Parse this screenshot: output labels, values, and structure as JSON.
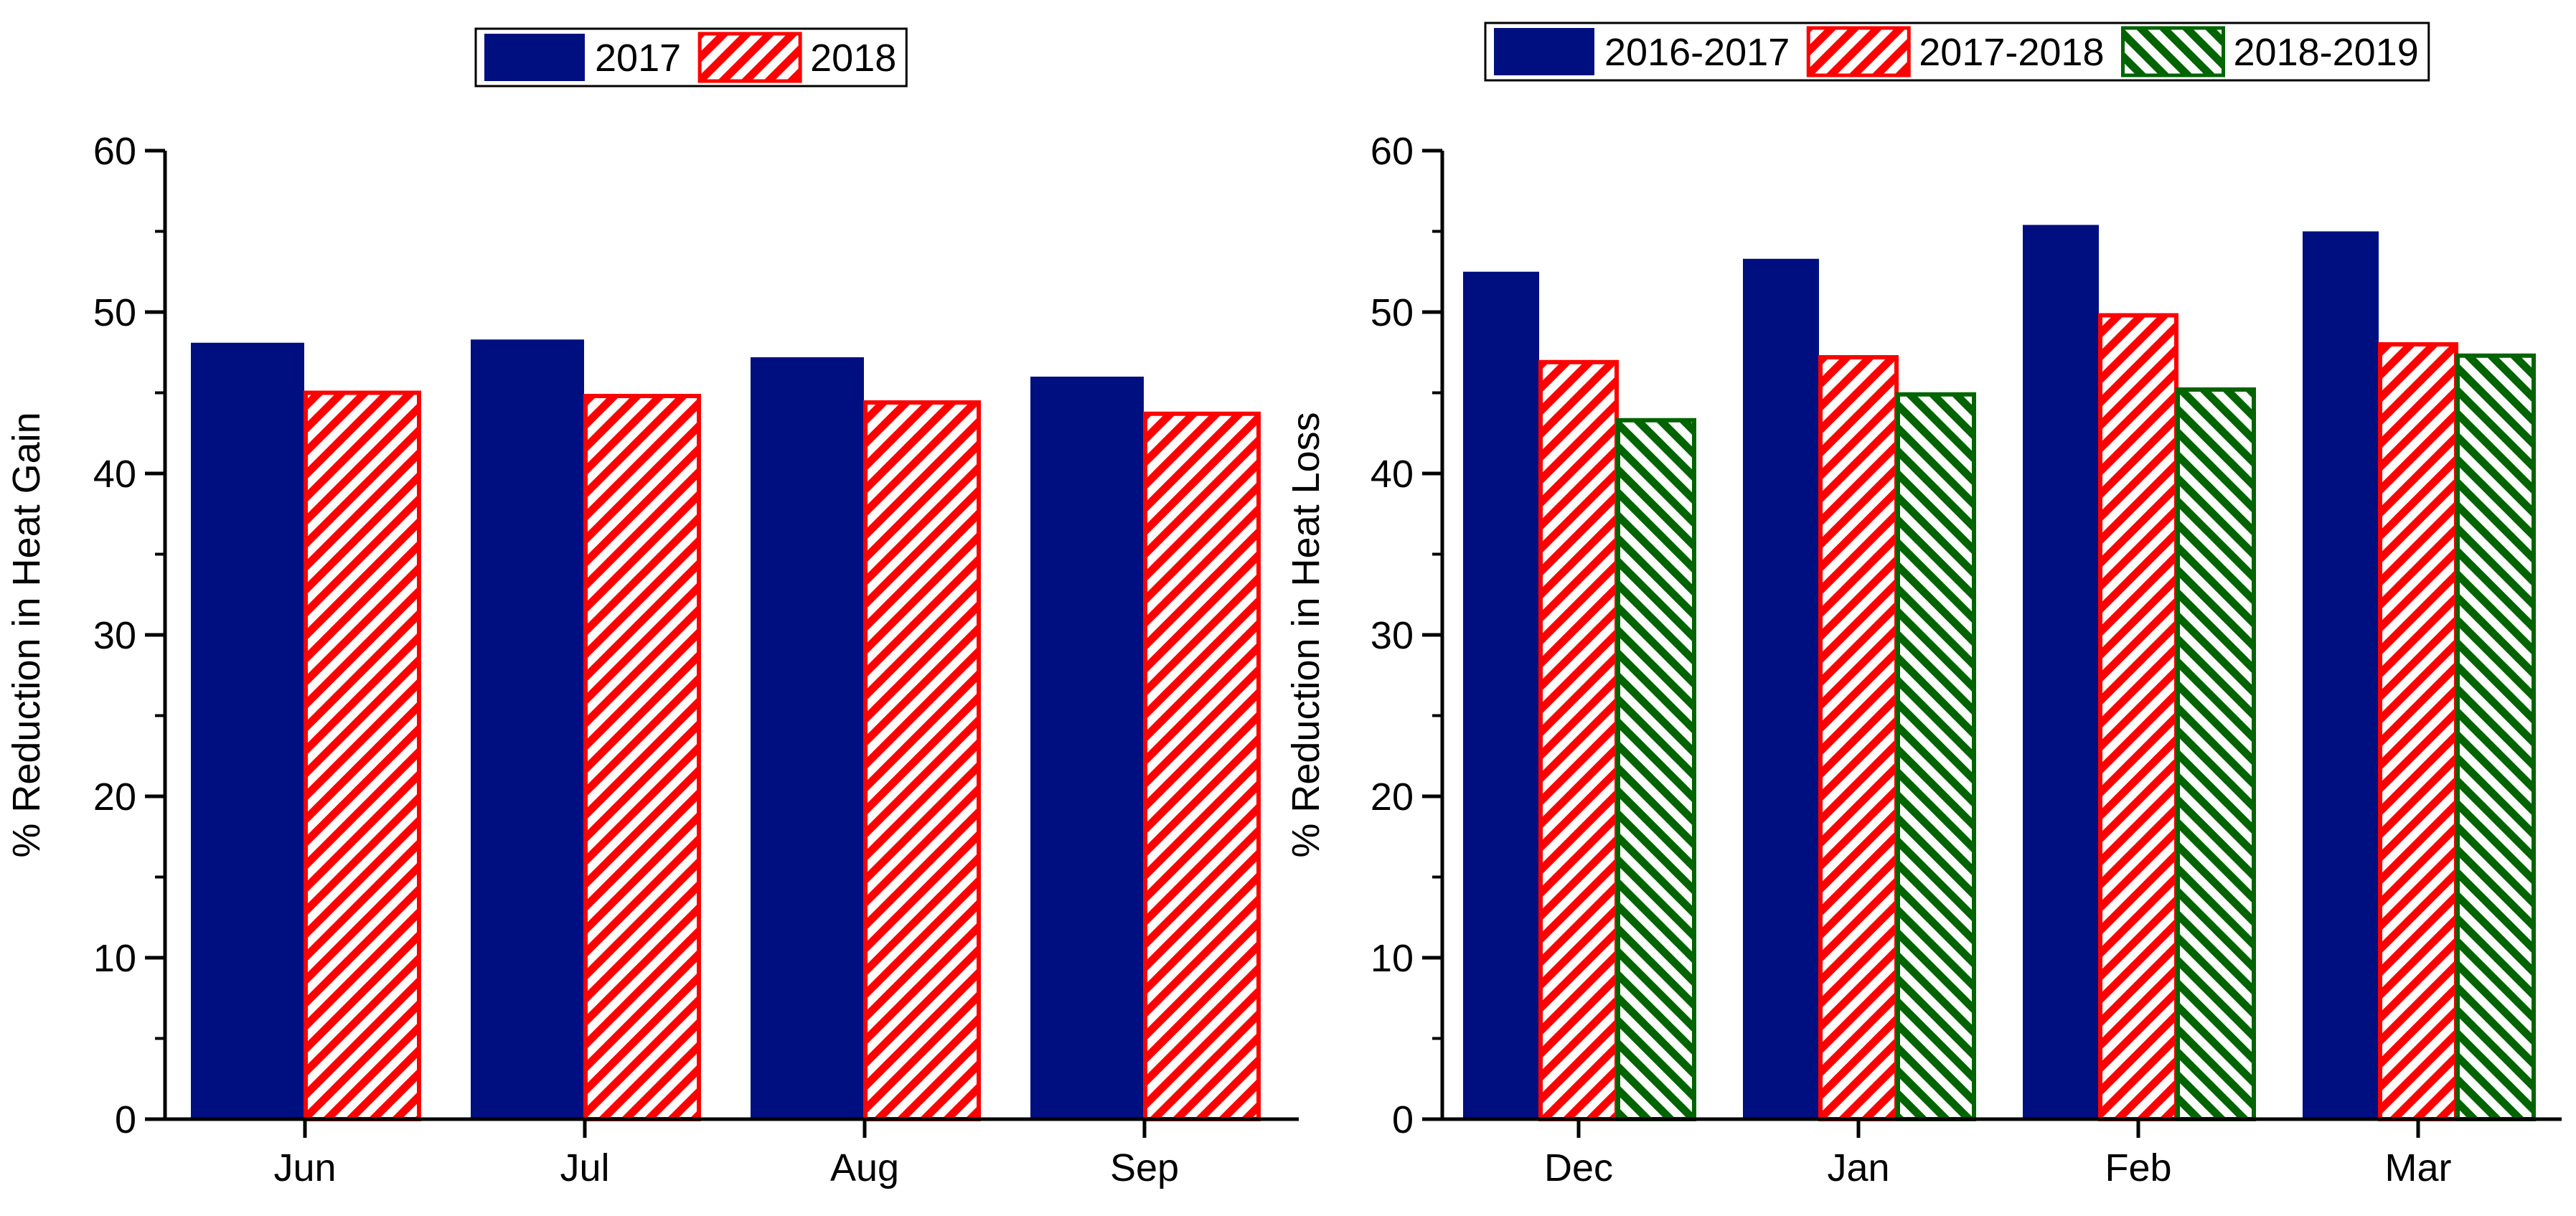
{
  "colors": {
    "series_navy": "#000F80",
    "series_red": "#FF0000",
    "series_green": "#006400",
    "axis": "#000000"
  },
  "chart_data": [
    {
      "type": "bar",
      "title": "",
      "xlabel": "",
      "ylabel": "% Reduction in Heat Gain",
      "ylim": [
        0,
        60
      ],
      "yticks": [
        0,
        10,
        20,
        30,
        40,
        50,
        60
      ],
      "categories": [
        "Jun",
        "Jul",
        "Aug",
        "Sep"
      ],
      "legend_position": "top-center",
      "grid": false,
      "series": [
        {
          "name": "2017",
          "style": "solid",
          "color": "#000F80",
          "values": [
            48.1,
            48.3,
            47.2,
            46.0
          ]
        },
        {
          "name": "2018",
          "style": "hatch-forward",
          "color": "#FF0000",
          "values": [
            45.0,
            44.8,
            44.4,
            43.7
          ]
        }
      ]
    },
    {
      "type": "bar",
      "title": "",
      "xlabel": "",
      "ylabel": "% Reduction in Heat Loss",
      "ylim": [
        0,
        60
      ],
      "yticks": [
        0,
        10,
        20,
        30,
        40,
        50,
        60
      ],
      "categories": [
        "Dec",
        "Jan",
        "Feb",
        "Mar"
      ],
      "legend_position": "top-center",
      "grid": false,
      "series": [
        {
          "name": "2016-2017",
          "style": "solid",
          "color": "#000F80",
          "values": [
            52.5,
            53.3,
            55.4,
            55.0
          ]
        },
        {
          "name": "2017-2018",
          "style": "hatch-forward",
          "color": "#FF0000",
          "values": [
            46.9,
            47.2,
            49.8,
            48.0
          ]
        },
        {
          "name": "2018-2019",
          "style": "hatch-back",
          "color": "#006400",
          "values": [
            43.3,
            44.9,
            45.2,
            47.3
          ]
        }
      ]
    }
  ]
}
